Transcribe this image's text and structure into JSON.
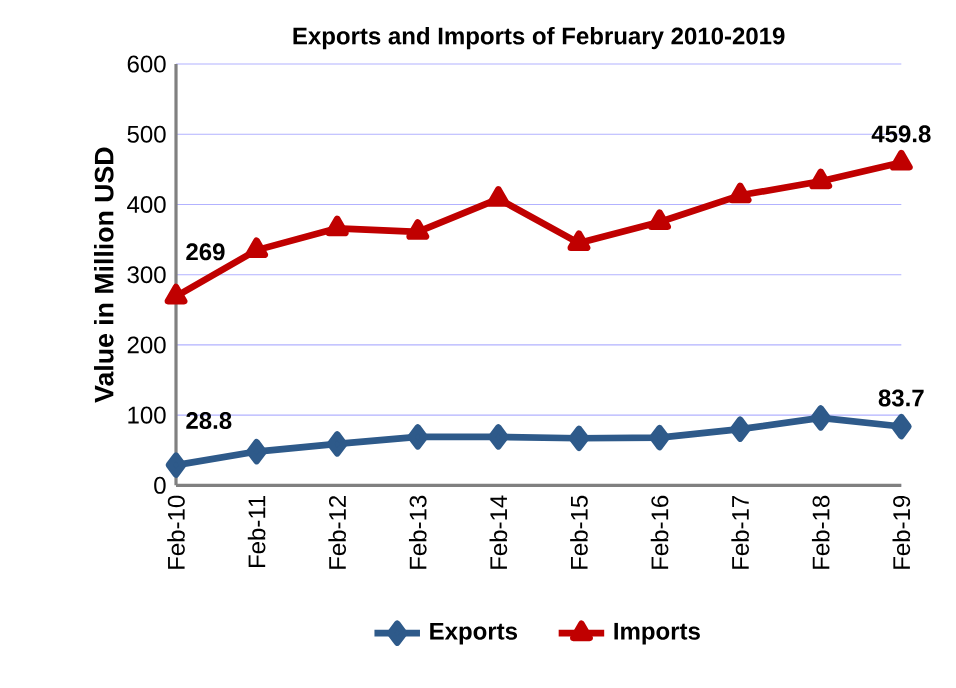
{
  "chart_data": {
    "type": "line",
    "title": "Exports  and Imports of February 2010-2019",
    "ylabel": "Value in  Million  USD",
    "categories": [
      "Feb-10",
      "Feb-11",
      "Feb-12",
      "Feb-13",
      "Feb-14",
      "Feb-15",
      "Feb-16",
      "Feb-17",
      "Feb-18",
      "Feb-19"
    ],
    "series": [
      {
        "name": "Exports",
        "color": "#2e5a8a",
        "marker": "diamond",
        "values": [
          28.8,
          48,
          59,
          69,
          69,
          67,
          68,
          80,
          96,
          83.7
        ],
        "value_labels": [
          "28.8",
          null,
          null,
          null,
          null,
          null,
          null,
          null,
          null,
          "83.7"
        ]
      },
      {
        "name": "Imports",
        "color": "#c00000",
        "marker": "triangle",
        "values": [
          269,
          335,
          366,
          361,
          408,
          345,
          375,
          413,
          433,
          459.8
        ],
        "value_labels": [
          "269",
          null,
          null,
          null,
          null,
          null,
          null,
          null,
          null,
          "459.8"
        ]
      }
    ],
    "ylim": [
      0,
      600
    ],
    "yticks": [
      0,
      100,
      200,
      300,
      400,
      500,
      600
    ],
    "grid": "y",
    "legend": "bottom"
  }
}
